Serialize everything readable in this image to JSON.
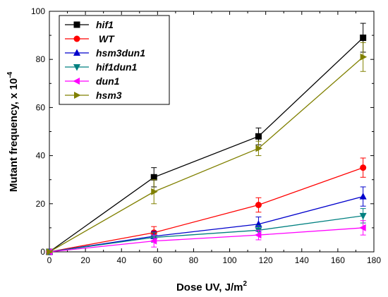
{
  "chart_data": {
    "type": "line",
    "xlabel": "Dose UV, J/m",
    "xlabel_sup": "2",
    "ylabel": "Mutant frequency, x 10",
    "ylabel_sup": "-4",
    "xlim": [
      0,
      180
    ],
    "ylim": [
      0,
      100
    ],
    "xticks": [
      "0",
      "20",
      "40",
      "60",
      "80",
      "100",
      "120",
      "140",
      "160",
      "180"
    ],
    "yticks": [
      "0",
      "20",
      "40",
      "60",
      "80",
      "100"
    ],
    "grid": false,
    "legend_position": "top-left",
    "x": [
      0,
      58,
      116,
      174
    ],
    "series": [
      {
        "name": "hif1",
        "color": "#000000",
        "marker": "square",
        "values": [
          0,
          31,
          48,
          89
        ],
        "errors": [
          0,
          4,
          3.5,
          6
        ]
      },
      {
        "name": " WT",
        "color": "#ff0000",
        "marker": "circle",
        "values": [
          0,
          8,
          19.5,
          35
        ],
        "errors": [
          0,
          2.5,
          3,
          4
        ]
      },
      {
        "name": "hsm3dun1",
        "color": "#0000cc",
        "marker": "triangle-up",
        "values": [
          0,
          6.5,
          11.5,
          23
        ],
        "errors": [
          0,
          2,
          3,
          4
        ]
      },
      {
        "name": "hif1dun1",
        "color": "#008080",
        "marker": "triangle-down",
        "values": [
          0,
          6,
          9,
          15
        ],
        "errors": [
          0,
          2,
          2,
          3
        ]
      },
      {
        "name": "dun1",
        "color": "#ff00ff",
        "marker": "triangle-left",
        "values": [
          0,
          4.5,
          7,
          10
        ],
        "errors": [
          0,
          2.5,
          2,
          3
        ]
      },
      {
        "name": "hsm3",
        "color": "#808000",
        "marker": "triangle-right",
        "values": [
          0,
          25,
          43,
          81
        ],
        "errors": [
          0,
          5,
          3,
          6
        ]
      }
    ]
  }
}
